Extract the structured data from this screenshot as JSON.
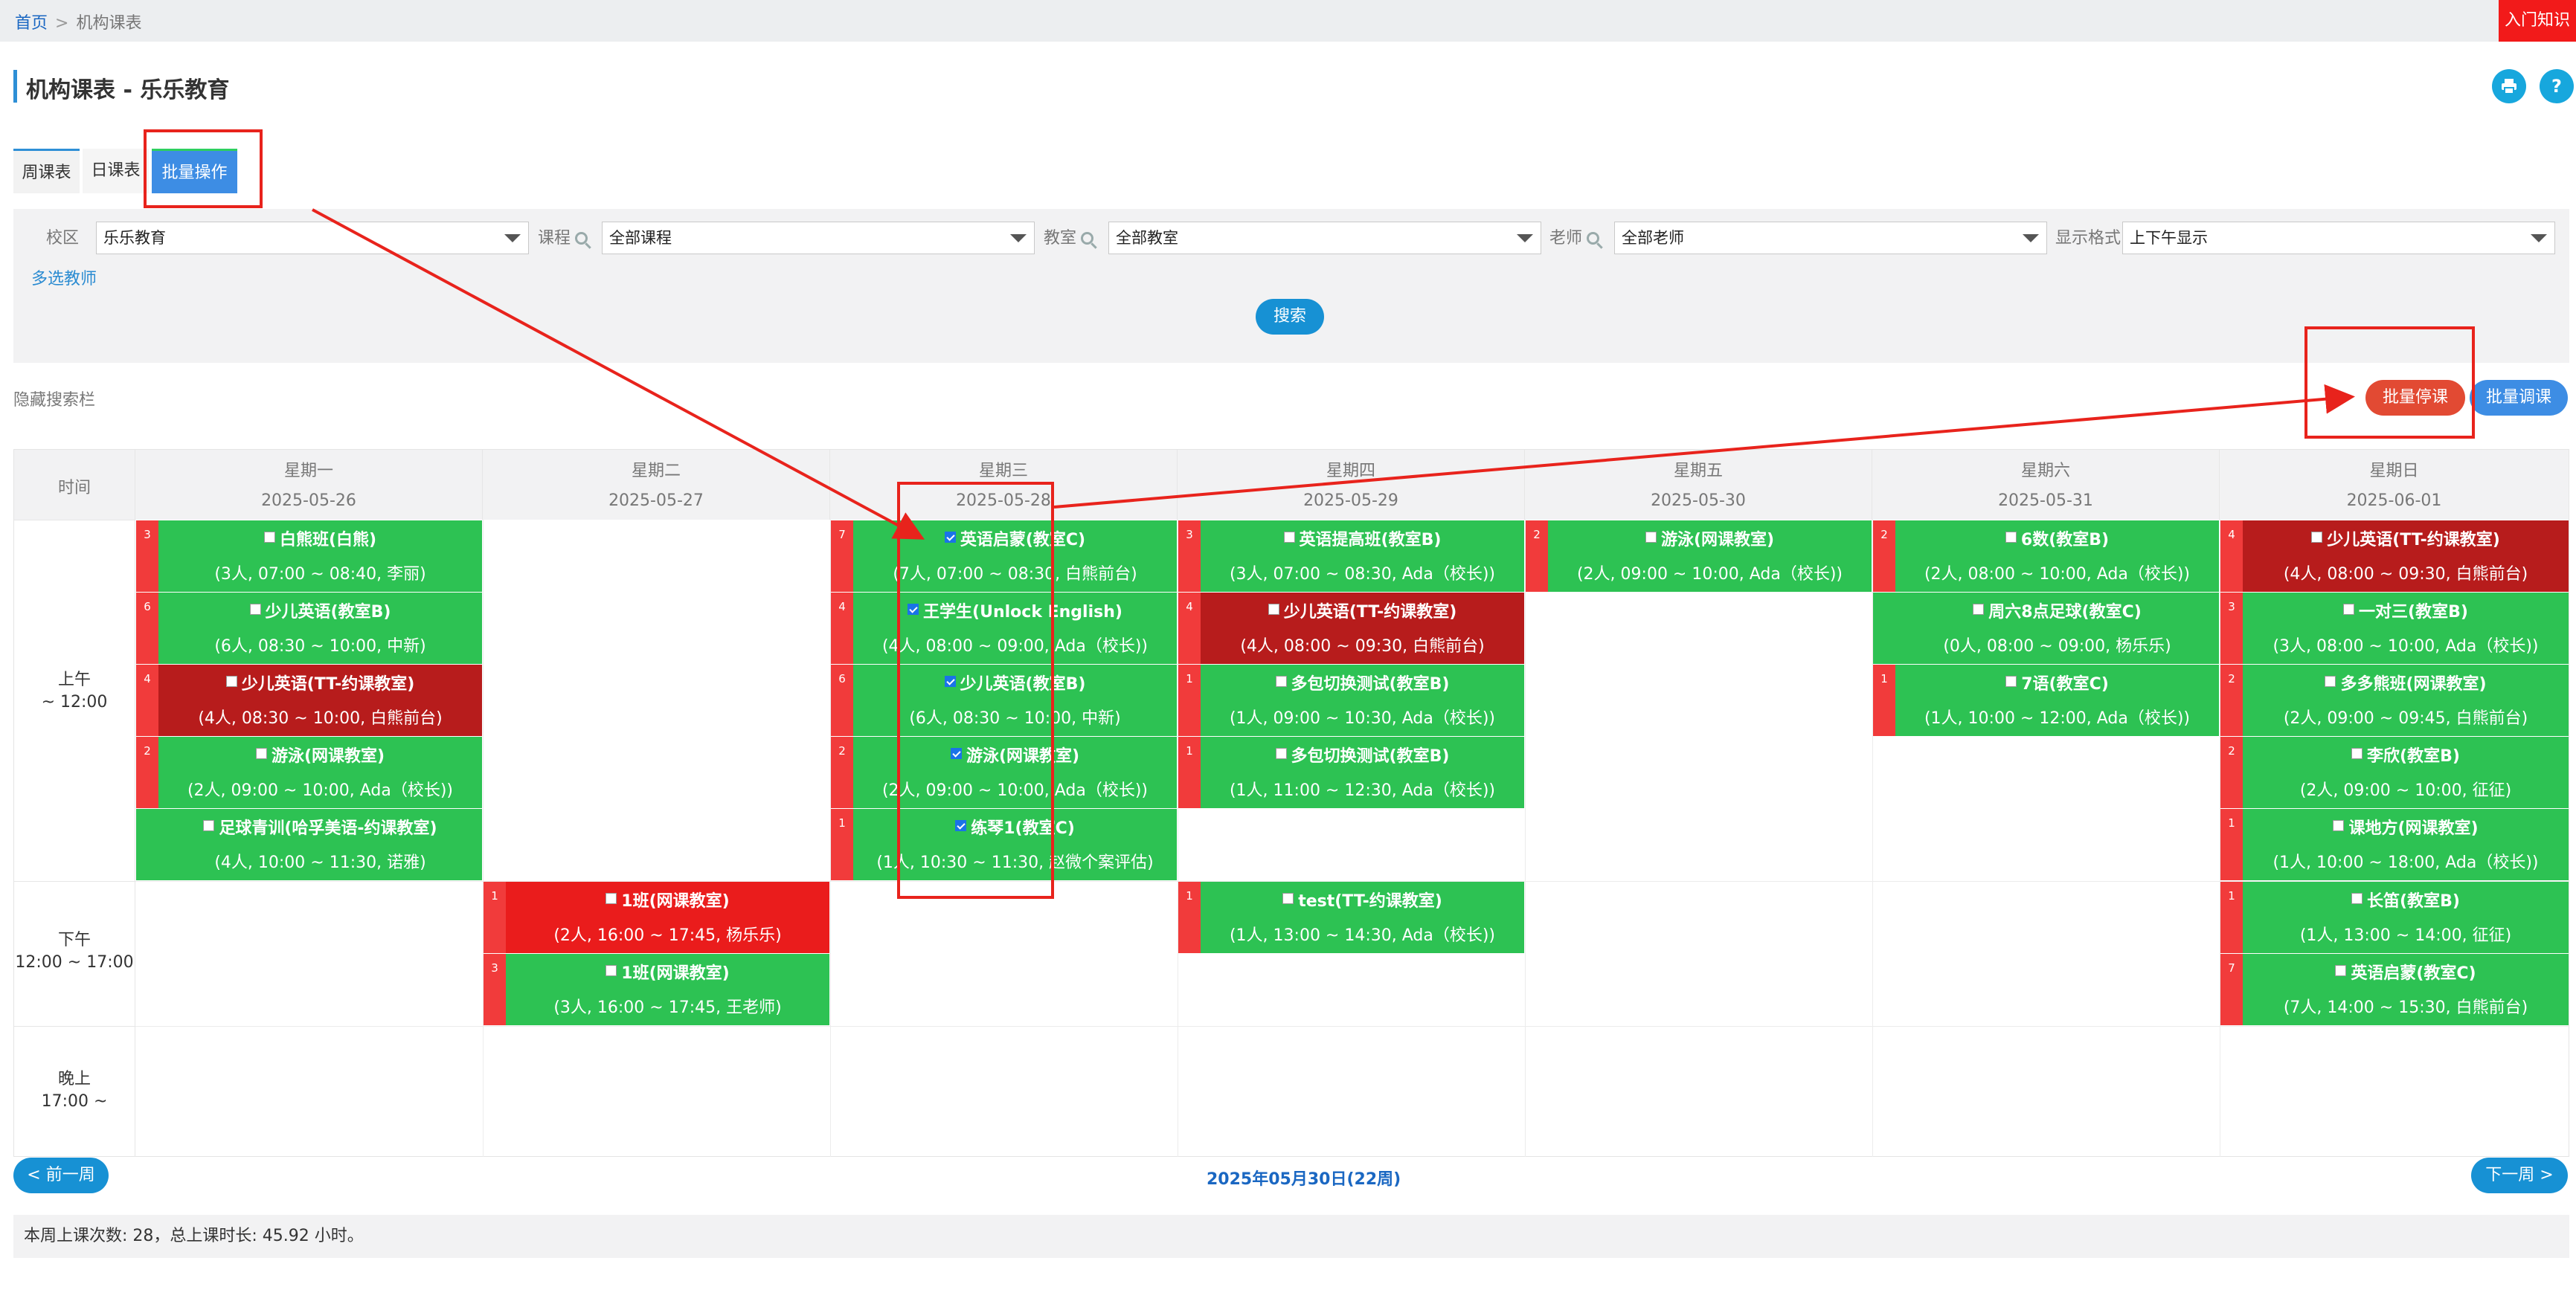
{
  "breadcrumb": {
    "home": "首页",
    "separator": ">",
    "current": "机构课表"
  },
  "intro_button": "入门知识",
  "page_title": "机构课表 - 乐乐教育",
  "header_icons": {
    "print": "print-icon",
    "help": "?"
  },
  "tabs": [
    "周课表",
    "日课表",
    "批量操作"
  ],
  "filters": {
    "campus_label": "校区",
    "campus_value": "乐乐教育",
    "course_label": "课程",
    "course_value": "全部课程",
    "room_label": "教室",
    "room_value": "全部教室",
    "teacher_label": "老师",
    "teacher_value": "全部老师",
    "format_label": "显示格式",
    "format_value": "上下午显示",
    "multi_teacher": "多选教师",
    "search": "搜索"
  },
  "hide_search": "隐藏搜索栏",
  "batch_buttons": {
    "stop": "批量停课",
    "adjust": "批量调课"
  },
  "grid": {
    "time_header": "时间",
    "days": [
      {
        "week": "星期一",
        "date": "2025-05-26"
      },
      {
        "week": "星期二",
        "date": "2025-05-27"
      },
      {
        "week": "星期三",
        "date": "2025-05-28"
      },
      {
        "week": "星期四",
        "date": "2025-05-29"
      },
      {
        "week": "星期五",
        "date": "2025-05-30"
      },
      {
        "week": "星期六",
        "date": "2025-05-31"
      },
      {
        "week": "星期日",
        "date": "2025-06-01"
      }
    ],
    "periods": [
      {
        "line1": "上午",
        "line2": "~ 12:00"
      },
      {
        "line1": "下午",
        "line2": "12:00 ~ 17:00"
      },
      {
        "line1": "晚上",
        "line2": "17:00 ~"
      }
    ],
    "classes": [
      {
        "day": 0,
        "slot": 0,
        "count": "3",
        "name": "白熊班(白熊)",
        "detail": "(3人, 07:00 ~ 08:40, 李丽)",
        "color": "green",
        "checked": false
      },
      {
        "day": 0,
        "slot": 1,
        "count": "6",
        "name": "少儿英语(教室B)",
        "detail": "(6人, 08:30 ~ 10:00, 中新)",
        "color": "green",
        "checked": false
      },
      {
        "day": 0,
        "slot": 2,
        "count": "4",
        "name": "少儿英语(TT-约课教室)",
        "detail": "(4人, 08:30 ~ 10:00, 白熊前台)",
        "color": "darkred",
        "checked": false
      },
      {
        "day": 0,
        "slot": 3,
        "count": "2",
        "name": "游泳(网课教室)",
        "detail": "(2人, 09:00 ~ 10:00, Ada（校长))",
        "color": "green",
        "checked": false
      },
      {
        "day": 0,
        "slot": 4,
        "count": "",
        "name": "足球青训(哈孚美语-约课教室)",
        "detail": "(4人, 10:00 ~ 11:30, 诺雅)",
        "color": "green",
        "checked": false
      },
      {
        "day": 1,
        "slot": 5,
        "count": "1",
        "name": "1班(网课教室)",
        "detail": "(2人, 16:00 ~ 17:45, 杨乐乐)",
        "color": "red",
        "checked": false
      },
      {
        "day": 1,
        "slot": 6,
        "count": "3",
        "name": "1班(网课教室)",
        "detail": "(3人, 16:00 ~ 17:45, 王老师)",
        "color": "green",
        "checked": false
      },
      {
        "day": 2,
        "slot": 0,
        "count": "7",
        "name": "英语启蒙(教室C)",
        "detail": "(7人, 07:00 ~ 08:30, 白熊前台)",
        "color": "green",
        "checked": true
      },
      {
        "day": 2,
        "slot": 1,
        "count": "4",
        "name": "王学生(Unlock English)",
        "detail": "(4人, 08:00 ~ 09:00, Ada（校长))",
        "color": "green",
        "checked": true
      },
      {
        "day": 2,
        "slot": 2,
        "count": "6",
        "name": "少儿英语(教室B)",
        "detail": "(6人, 08:30 ~ 10:00, 中新)",
        "color": "green",
        "checked": true
      },
      {
        "day": 2,
        "slot": 3,
        "count": "2",
        "name": "游泳(网课教室)",
        "detail": "(2人, 09:00 ~ 10:00, Ada（校长))",
        "color": "green",
        "checked": true
      },
      {
        "day": 2,
        "slot": 4,
        "count": "1",
        "name": "练琴1(教室C)",
        "detail": "(1人, 10:30 ~ 11:30, 赵微个案评估)",
        "color": "green",
        "checked": true
      },
      {
        "day": 3,
        "slot": 0,
        "count": "3",
        "name": "英语提高班(教室B)",
        "detail": "(3人, 07:00 ~ 08:30, Ada（校长))",
        "color": "green",
        "checked": false
      },
      {
        "day": 3,
        "slot": 1,
        "count": "4",
        "name": "少儿英语(TT-约课教室)",
        "detail": "(4人, 08:00 ~ 09:30, 白熊前台)",
        "color": "darkred",
        "checked": false
      },
      {
        "day": 3,
        "slot": 2,
        "count": "1",
        "name": "多包切换测试(教室B)",
        "detail": "(1人, 09:00 ~ 10:30, Ada（校长))",
        "color": "green",
        "checked": false
      },
      {
        "day": 3,
        "slot": 3,
        "count": "1",
        "name": "多包切换测试(教室B)",
        "detail": "(1人, 11:00 ~ 12:30, Ada（校长))",
        "color": "green",
        "checked": false
      },
      {
        "day": 3,
        "slot": 5,
        "count": "1",
        "name": "test(TT-约课教室)",
        "detail": "(1人, 13:00 ~ 14:30, Ada（校长))",
        "color": "green",
        "checked": false
      },
      {
        "day": 4,
        "slot": 0,
        "count": "2",
        "name": "游泳(网课教室)",
        "detail": "(2人, 09:00 ~ 10:00, Ada（校长))",
        "color": "green",
        "checked": false
      },
      {
        "day": 5,
        "slot": 0,
        "count": "2",
        "name": "6数(教室B)",
        "detail": "(2人, 08:00 ~ 10:00, Ada（校长))",
        "color": "green",
        "checked": false
      },
      {
        "day": 5,
        "slot": 1,
        "count": "",
        "name": "周六8点足球(教室C)",
        "detail": "(0人, 08:00 ~ 09:00, 杨乐乐)",
        "color": "green",
        "checked": false
      },
      {
        "day": 5,
        "slot": 2,
        "count": "1",
        "name": "7语(教室C)",
        "detail": "(1人, 10:00 ~ 12:00, Ada（校长))",
        "color": "green",
        "checked": false
      },
      {
        "day": 6,
        "slot": 0,
        "count": "4",
        "name": "少儿英语(TT-约课教室)",
        "detail": "(4人, 08:00 ~ 09:30, 白熊前台)",
        "color": "darkred",
        "checked": false
      },
      {
        "day": 6,
        "slot": 1,
        "count": "3",
        "name": "一对三(教室B)",
        "detail": "(3人, 08:00 ~ 10:00, Ada（校长))",
        "color": "green",
        "checked": false
      },
      {
        "day": 6,
        "slot": 2,
        "count": "2",
        "name": "多多熊班(网课教室)",
        "detail": "(2人, 09:00 ~ 09:45, 白熊前台)",
        "color": "green",
        "checked": false
      },
      {
        "day": 6,
        "slot": 3,
        "count": "2",
        "name": "李欣(教室B)",
        "detail": "(2人, 09:00 ~ 10:00, 征征)",
        "color": "green",
        "checked": false
      },
      {
        "day": 6,
        "slot": 4,
        "count": "1",
        "name": "课地方(网课教室)",
        "detail": "(1人, 10:00 ~ 18:00, Ada（校长))",
        "color": "green",
        "checked": false
      },
      {
        "day": 6,
        "slot": 5,
        "count": "1",
        "name": "长笛(教室B)",
        "detail": "(1人, 13:00 ~ 14:00, 征征)",
        "color": "green",
        "checked": false
      },
      {
        "day": 6,
        "slot": 6,
        "count": "7",
        "name": "英语启蒙(教室C)",
        "detail": "(7人, 14:00 ~ 15:30, 白熊前台)",
        "color": "green",
        "checked": false
      }
    ]
  },
  "footer": {
    "prev": "< 前一周",
    "week": "2025年05月30日(22周)",
    "next": "下一周 >",
    "summary": "本周上课次数: 28，总上课时长: 45.92 小时。"
  },
  "colors": {
    "green": "#2dc253",
    "darkred": "#b71c1c",
    "red": "#ea1c1c",
    "annotation": "#e8231c",
    "accent": "#1791d4"
  }
}
